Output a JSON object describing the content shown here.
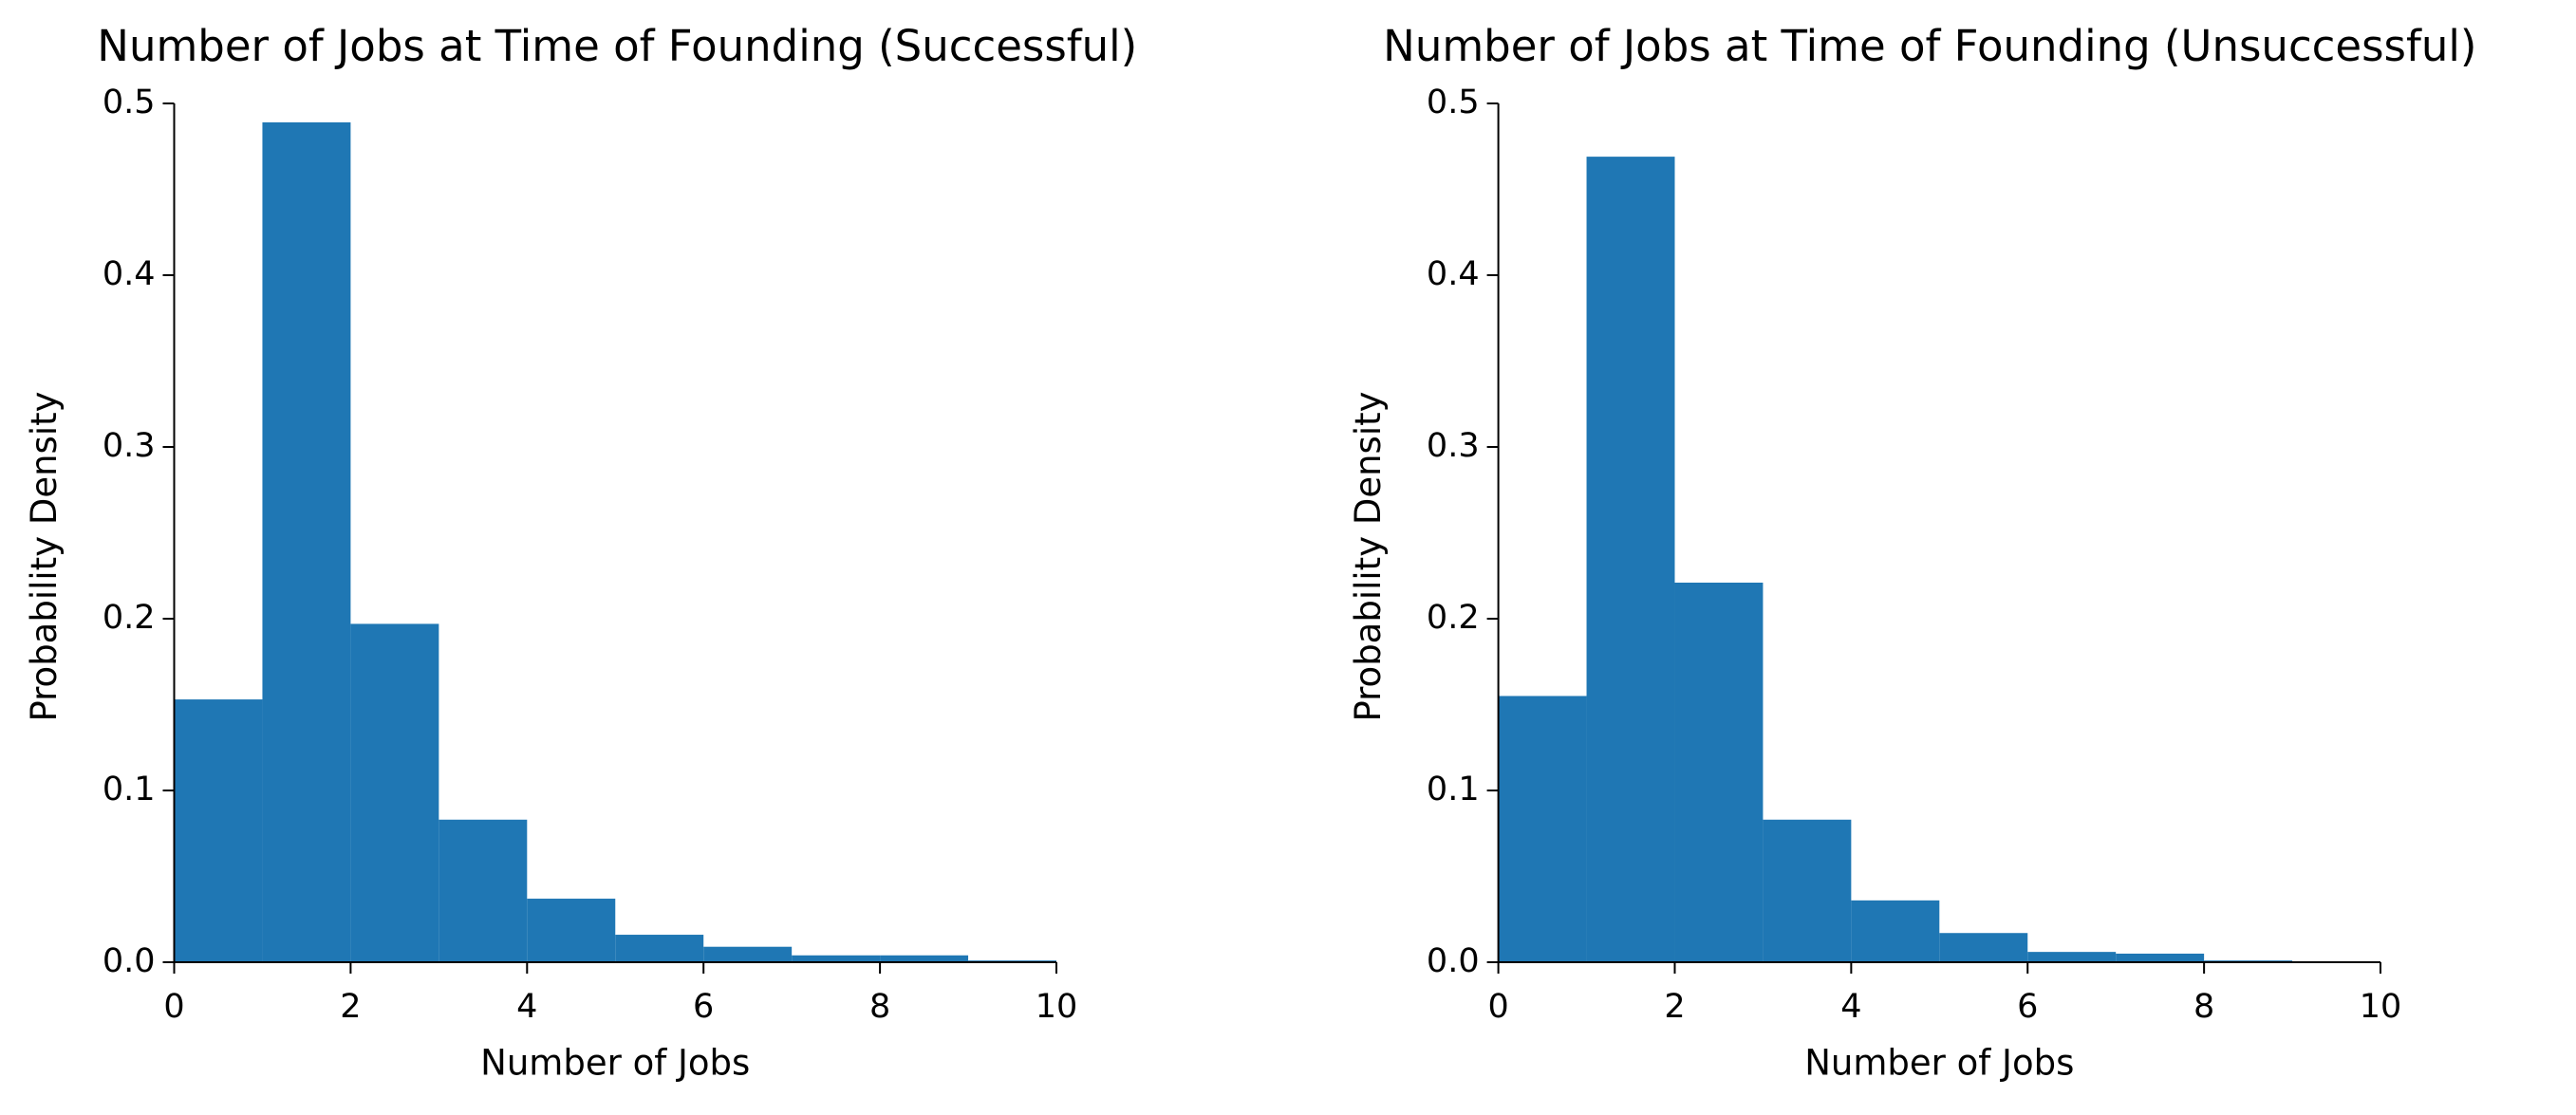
{
  "chart_data": [
    {
      "type": "histogram",
      "title": "Number of Jobs at Time of Founding (Successful)",
      "xlabel": "Number of Jobs",
      "ylabel": "Probability Density",
      "bins": [
        0,
        1,
        2,
        3,
        4,
        5,
        6,
        7,
        8,
        9,
        10
      ],
      "values": [
        0.153,
        0.489,
        0.197,
        0.083,
        0.037,
        0.016,
        0.009,
        0.004,
        0.004,
        0.001
      ],
      "color": "#1f77b4",
      "xlim": [
        0,
        10
      ],
      "xticks": [
        0,
        2,
        4,
        6,
        8,
        10
      ],
      "ylim": [
        0,
        0.5
      ],
      "yticks": [
        {
          "value": 0,
          "label": "0.0"
        },
        0.1,
        0.2,
        0.3,
        0.4,
        0.5
      ]
    },
    {
      "type": "histogram",
      "title": "Number of Jobs at Time of Founding (Unsuccessful)",
      "xlabel": "Number of Jobs",
      "ylabel": "Probability Density",
      "bins": [
        0,
        1,
        2,
        3,
        4,
        5,
        6,
        7,
        8,
        9,
        10
      ],
      "values": [
        0.155,
        0.469,
        0.221,
        0.083,
        0.036,
        0.017,
        0.006,
        0.005,
        0.001,
        0.0005
      ],
      "color": "#1f77b4",
      "xlim": [
        0,
        10
      ],
      "xticks": [
        0,
        2,
        4,
        6,
        8,
        10
      ],
      "ylim": [
        0,
        0.5
      ],
      "yticks": [
        {
          "value": 0,
          "label": "0.0"
        },
        0.1,
        0.2,
        0.3,
        0.4,
        0.5
      ]
    }
  ]
}
